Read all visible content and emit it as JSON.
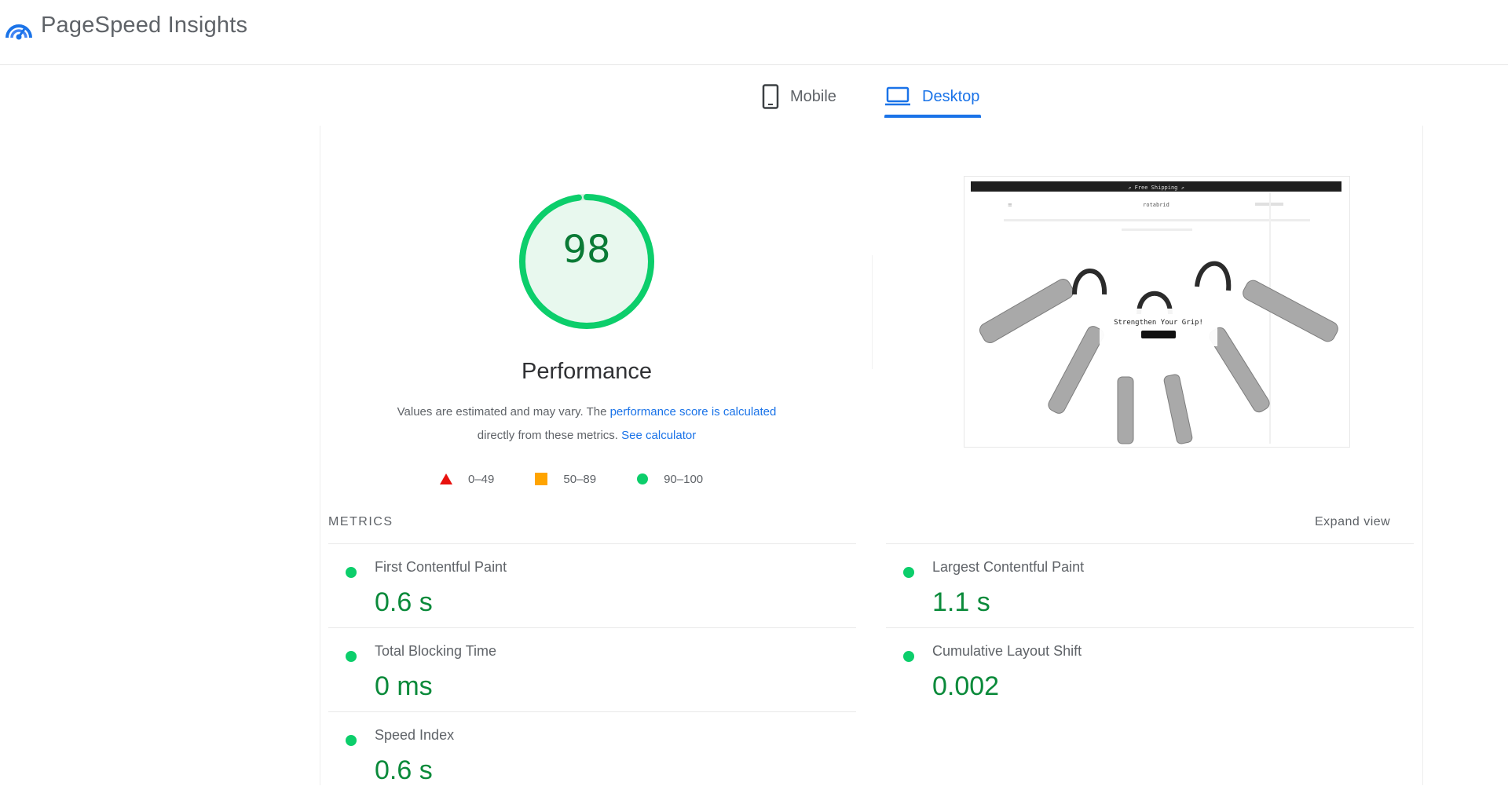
{
  "app": {
    "title": "PageSpeed Insights"
  },
  "tabs": [
    {
      "label": "Mobile",
      "selected": false,
      "icon": "phone-icon"
    },
    {
      "label": "Desktop",
      "selected": true,
      "icon": "laptop-icon"
    }
  ],
  "score": {
    "value": "98",
    "fraction": 0.98,
    "category": "Performance",
    "color": "#0cce6b"
  },
  "note": {
    "text1": "Values are estimated and may vary. The ",
    "link1": "performance score is calculated",
    "text2": "directly from these metrics. ",
    "link2": "See calculator"
  },
  "legend": [
    {
      "range": "0–49",
      "shape": "triangle",
      "color": "#e8110e"
    },
    {
      "range": "50–89",
      "shape": "square",
      "color": "#ffa400"
    },
    {
      "range": "90–100",
      "shape": "circle",
      "color": "#0cce6b"
    }
  ],
  "preview": {
    "banner": "⇗ Free Shipping ⇗",
    "brand": "rotabrid",
    "headline": "Strengthen Your Grip!"
  },
  "metrics": {
    "label": "METRICS",
    "expand_label": "Expand view",
    "items": [
      {
        "name": "First Contentful Paint",
        "value": "0.6 s"
      },
      {
        "name": "Largest Contentful Paint",
        "value": "1.1 s"
      },
      {
        "name": "Total Blocking Time",
        "value": "0 ms"
      },
      {
        "name": "Cumulative Layout Shift",
        "value": "0.002"
      },
      {
        "name": "Speed Index",
        "value": "0.6 s"
      }
    ]
  }
}
